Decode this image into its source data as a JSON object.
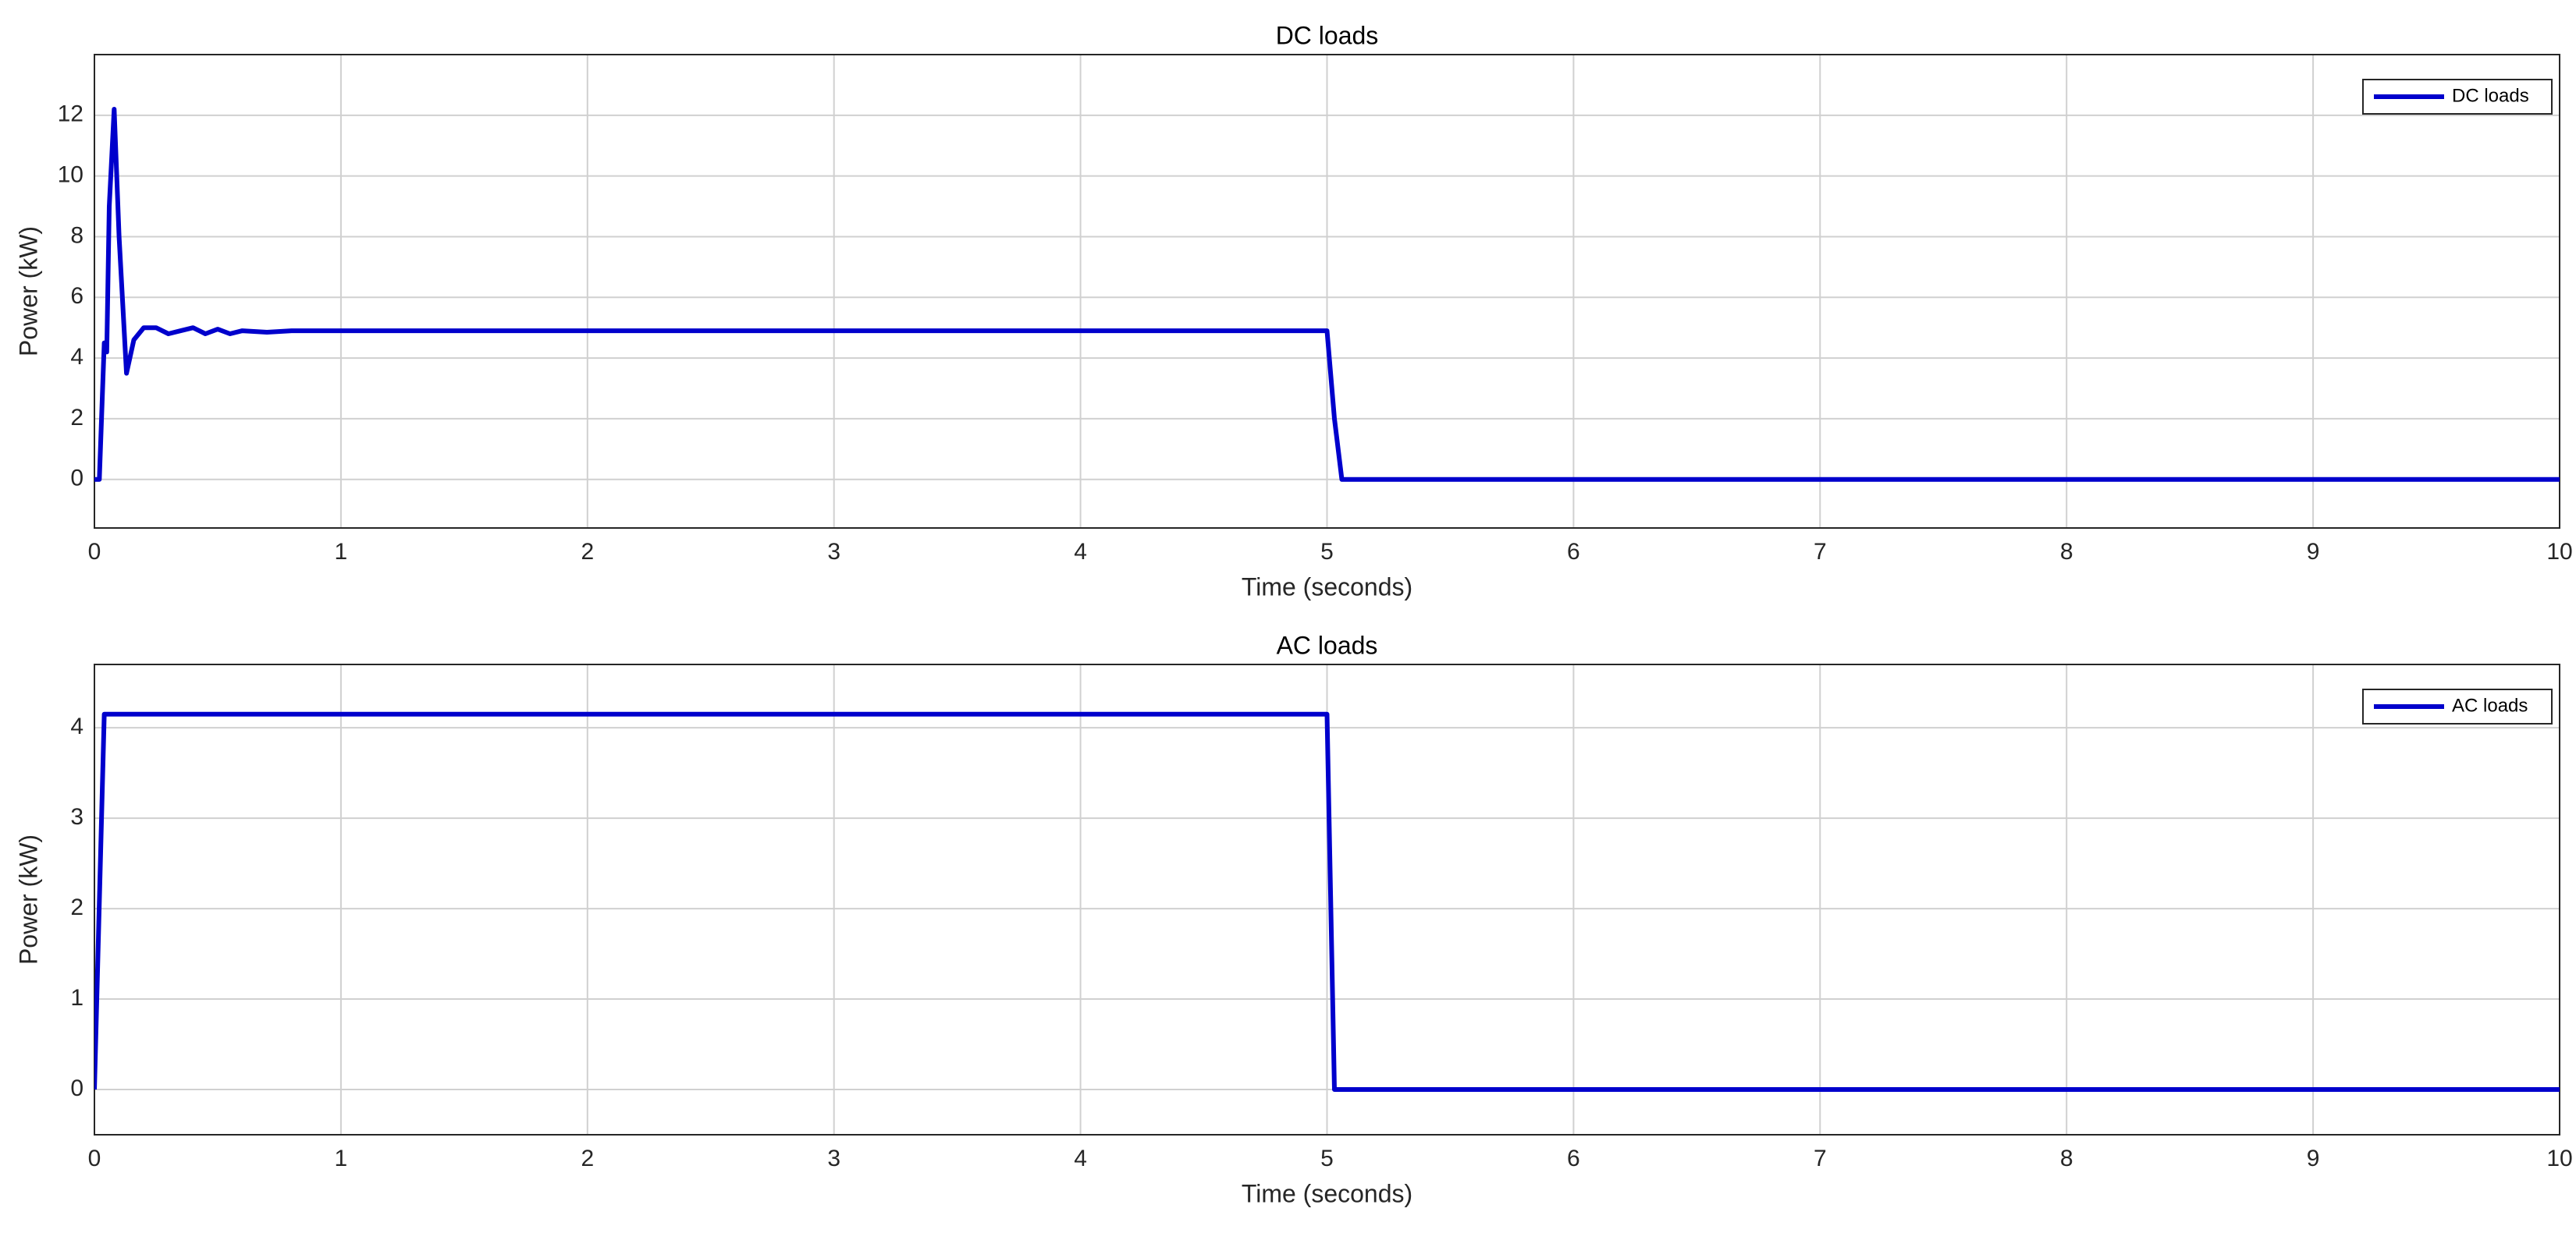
{
  "chart_data": [
    {
      "type": "line",
      "title": "DC loads",
      "xlabel": "Time (seconds)",
      "ylabel": "Power (kW)",
      "x": [
        0,
        0.02,
        0.04,
        0.05,
        0.06,
        0.08,
        0.1,
        0.13,
        0.16,
        0.2,
        0.25,
        0.3,
        0.35,
        0.4,
        0.45,
        0.5,
        0.55,
        0.6,
        0.7,
        0.8,
        1,
        1.5,
        5,
        5.03,
        5.06,
        10
      ],
      "series": [
        {
          "name": "DC loads",
          "color": "#0000cc",
          "values": [
            0,
            0,
            4.5,
            4.2,
            9,
            12.2,
            8,
            3.5,
            4.6,
            5.0,
            5.0,
            4.8,
            4.9,
            5.0,
            4.8,
            4.95,
            4.8,
            4.9,
            4.85,
            4.9,
            4.9,
            4.9,
            4.9,
            2,
            0,
            0
          ]
        }
      ],
      "xlim": [
        0,
        10
      ],
      "ylim": [
        -1.6,
        14
      ],
      "xticks": [
        0,
        1,
        2,
        3,
        4,
        5,
        6,
        7,
        8,
        9,
        10
      ],
      "yticks": [
        0,
        2,
        4,
        6,
        8,
        10,
        12
      ],
      "grid": true,
      "legend": "upper right"
    },
    {
      "type": "line",
      "title": "AC loads",
      "xlabel": "Time (seconds)",
      "ylabel": "Power (kW)",
      "x": [
        0,
        0.04,
        5,
        5.03,
        10
      ],
      "series": [
        {
          "name": "AC loads",
          "color": "#0000cc",
          "values": [
            0,
            4.15,
            4.15,
            0,
            0
          ]
        }
      ],
      "xlim": [
        0,
        10
      ],
      "ylim": [
        -0.5,
        4.7
      ],
      "xticks": [
        0,
        1,
        2,
        3,
        4,
        5,
        6,
        7,
        8,
        9,
        10
      ],
      "yticks": [
        0,
        1,
        2,
        3,
        4
      ],
      "grid": true,
      "legend": "upper right"
    }
  ]
}
